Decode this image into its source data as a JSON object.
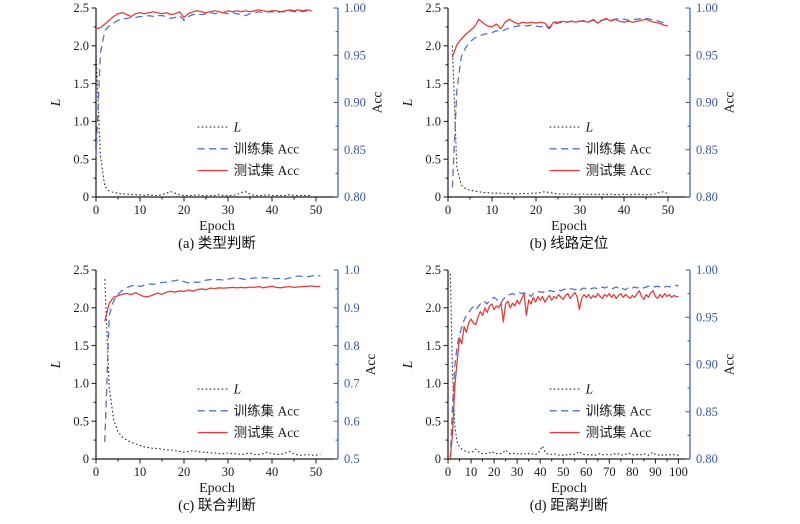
{
  "style": {
    "loss_color": "#2a2a2a",
    "train_color": "#5373c3",
    "test_color": "#e03e3c",
    "right_axis_color": "#3b56a8",
    "axis_color": "#1a1a1a"
  },
  "chart_data": [
    {
      "type": "line",
      "caption": "(a) 类型判断",
      "xlabel": "Epoch",
      "ylabel_left": "L",
      "ylabel_right": "Acc",
      "xlim": [
        0,
        55
      ],
      "xticks": [
        0,
        10,
        20,
        30,
        40,
        50
      ],
      "x_minor_step": 5,
      "ylim_left": [
        0,
        2.5
      ],
      "yticks_left": [
        "0",
        "0.5",
        "1.0",
        "1.5",
        "2.0",
        "2.5"
      ],
      "ylim_right": [
        0.8,
        1.0
      ],
      "yticks_right": [
        "0.80",
        "0.85",
        "0.90",
        "0.95",
        "1.00"
      ],
      "legend": [
        "L",
        "训练集 Acc",
        "测试集 Acc"
      ],
      "x_start": 0,
      "series": [
        {
          "name": "L",
          "axis": "left",
          "style": "dotted",
          "color": "loss_color",
          "values": [
            1.92,
            0.55,
            0.14,
            0.08,
            0.06,
            0.05,
            0.04,
            0.04,
            0.03,
            0.03,
            0.03,
            0.02,
            0.03,
            0.02,
            0.02,
            0.03,
            0.05,
            0.07,
            0.05,
            0.03,
            0.02,
            0.02,
            0.02,
            0.03,
            0.02,
            0.02,
            0.02,
            0.02,
            0.03,
            0.02,
            0.02,
            0.02,
            0.03,
            0.06,
            0.07,
            0.04,
            0.02,
            0.02,
            0.02,
            0.03,
            0.02,
            0.02,
            0.02,
            0.02,
            0.03,
            0.02,
            0.02,
            0.02,
            0.02,
            0.02
          ]
        },
        {
          "name": "训练集 Acc",
          "axis": "right",
          "style": "dashed",
          "color": "train_color",
          "values": [
            0.843,
            0.952,
            0.976,
            0.981,
            0.984,
            0.987,
            0.988,
            0.989,
            0.99,
            0.99,
            0.991,
            0.991,
            0.992,
            0.991,
            0.992,
            0.992,
            0.991,
            0.989,
            0.99,
            0.992,
            0.987,
            0.991,
            0.993,
            0.994,
            0.993,
            0.994,
            0.995,
            0.994,
            0.995,
            0.995,
            0.994,
            0.995,
            0.994,
            0.993,
            0.992,
            0.994,
            0.995,
            0.996,
            0.995,
            0.996,
            0.996,
            0.995,
            0.996,
            0.996,
            0.997,
            0.996,
            0.997,
            0.996,
            0.997,
            0.997
          ]
        },
        {
          "name": "测试集 Acc",
          "axis": "right",
          "style": "solid",
          "color": "test_color",
          "values": [
            0.978,
            0.979,
            0.983,
            0.987,
            0.991,
            0.994,
            0.995,
            0.993,
            0.991,
            0.994,
            0.995,
            0.994,
            0.995,
            0.996,
            0.995,
            0.994,
            0.995,
            0.993,
            0.994,
            0.996,
            0.99,
            0.994,
            0.996,
            0.997,
            0.996,
            0.995,
            0.996,
            0.997,
            0.996,
            0.995,
            0.997,
            0.996,
            0.997,
            0.996,
            0.997,
            0.996,
            0.997,
            0.998,
            0.997,
            0.996,
            0.997,
            0.997,
            0.996,
            0.997,
            0.998,
            0.997,
            0.998,
            0.997,
            0.998,
            0.997
          ]
        }
      ]
    },
    {
      "type": "line",
      "caption": "(b) 线路定位",
      "xlabel": "Epoch",
      "ylabel_left": "L",
      "ylabel_right": "Acc",
      "xlim": [
        0,
        55
      ],
      "xticks": [
        0,
        10,
        20,
        30,
        40,
        50
      ],
      "x_minor_step": 5,
      "ylim_left": [
        0,
        2.5
      ],
      "yticks_left": [
        "0",
        "0.5",
        "1.0",
        "1.5",
        "2.0",
        "2.5"
      ],
      "ylim_right": [
        0.8,
        1.0
      ],
      "yticks_right": [
        "0.80",
        "0.85",
        "0.90",
        "0.95",
        "1.00"
      ],
      "legend": [
        "L",
        "训练集 Acc",
        "测试集 Acc"
      ],
      "x_start": 1,
      "series": [
        {
          "name": "L",
          "axis": "left",
          "style": "dotted",
          "color": "loss_color",
          "values": [
            2.0,
            0.4,
            0.16,
            0.11,
            0.09,
            0.08,
            0.07,
            0.06,
            0.06,
            0.05,
            0.05,
            0.05,
            0.04,
            0.05,
            0.04,
            0.04,
            0.05,
            0.04,
            0.05,
            0.05,
            0.06,
            0.07,
            0.06,
            0.05,
            0.04,
            0.04,
            0.04,
            0.04,
            0.03,
            0.04,
            0.04,
            0.03,
            0.04,
            0.03,
            0.04,
            0.03,
            0.04,
            0.03,
            0.03,
            0.04,
            0.03,
            0.03,
            0.04,
            0.03,
            0.03,
            0.03,
            0.04,
            0.06,
            0.07,
            0.04
          ]
        },
        {
          "name": "训练集 Acc",
          "axis": "right",
          "style": "dashed",
          "color": "train_color",
          "values": [
            0.81,
            0.912,
            0.948,
            0.958,
            0.964,
            0.968,
            0.97,
            0.972,
            0.973,
            0.974,
            0.976,
            0.975,
            0.977,
            0.979,
            0.98,
            0.981,
            0.982,
            0.981,
            0.982,
            0.981,
            0.98,
            0.982,
            0.978,
            0.983,
            0.984,
            0.985,
            0.985,
            0.986,
            0.986,
            0.986,
            0.987,
            0.986,
            0.987,
            0.986,
            0.987,
            0.988,
            0.987,
            0.988,
            0.989,
            0.988,
            0.987,
            0.988,
            0.988,
            0.989,
            0.989,
            0.988,
            0.987,
            0.986,
            0.984,
            0.983
          ]
        },
        {
          "name": "测试集 Acc",
          "axis": "right",
          "style": "solid",
          "color": "test_color",
          "values": [
            0.948,
            0.961,
            0.967,
            0.972,
            0.976,
            0.98,
            0.988,
            0.984,
            0.981,
            0.98,
            0.983,
            0.978,
            0.985,
            0.988,
            0.985,
            0.983,
            0.985,
            0.984,
            0.985,
            0.984,
            0.985,
            0.984,
            0.979,
            0.985,
            0.985,
            0.986,
            0.985,
            0.986,
            0.985,
            0.986,
            0.986,
            0.985,
            0.988,
            0.984,
            0.987,
            0.989,
            0.986,
            0.988,
            0.986,
            0.985,
            0.986,
            0.985,
            0.986,
            0.987,
            0.988,
            0.986,
            0.985,
            0.984,
            0.982,
            0.981
          ]
        }
      ]
    },
    {
      "type": "line",
      "caption": "(c) 联合判断",
      "xlabel": "Epoch",
      "ylabel_left": "L",
      "ylabel_right": "Acc",
      "xlim": [
        0,
        55
      ],
      "xticks": [
        0,
        10,
        20,
        30,
        40,
        50
      ],
      "x_minor_step": 5,
      "ylim_left": [
        0,
        2.5
      ],
      "yticks_left": [
        "0",
        "0.5",
        "1.0",
        "1.5",
        "2.0",
        "2.5"
      ],
      "ylim_right": [
        0.5,
        1.0
      ],
      "yticks_right": [
        "0.5",
        "0.6",
        "0.7",
        "0.8",
        "0.9",
        "1.0"
      ],
      "legend": [
        "L",
        "训练集 Acc",
        "测试集 Acc"
      ],
      "x_start": 2,
      "series": [
        {
          "name": "L",
          "axis": "left",
          "style": "dotted",
          "color": "loss_color",
          "values": [
            2.38,
            0.95,
            0.52,
            0.36,
            0.29,
            0.25,
            0.22,
            0.2,
            0.18,
            0.16,
            0.15,
            0.14,
            0.14,
            0.13,
            0.12,
            0.12,
            0.11,
            0.1,
            0.09,
            0.1,
            0.11,
            0.1,
            0.09,
            0.09,
            0.08,
            0.08,
            0.07,
            0.07,
            0.08,
            0.07,
            0.07,
            0.06,
            0.07,
            0.08,
            0.06,
            0.06,
            0.07,
            0.09,
            0.07,
            0.06,
            0.06,
            0.08,
            0.1,
            0.07,
            0.05,
            0.05,
            0.06,
            0.05,
            0.05,
            0.06
          ]
        },
        {
          "name": "训练集 Acc",
          "axis": "right",
          "style": "dashed",
          "color": "train_color",
          "values": [
            0.545,
            0.88,
            0.918,
            0.936,
            0.946,
            0.953,
            0.958,
            0.961,
            0.956,
            0.96,
            0.963,
            0.962,
            0.965,
            0.967,
            0.968,
            0.97,
            0.972,
            0.974,
            0.969,
            0.966,
            0.968,
            0.967,
            0.969,
            0.973,
            0.975,
            0.974,
            0.975,
            0.973,
            0.976,
            0.978,
            0.979,
            0.977,
            0.975,
            0.977,
            0.979,
            0.978,
            0.98,
            0.979,
            0.978,
            0.977,
            0.978,
            0.976,
            0.979,
            0.982,
            0.984,
            0.983,
            0.982,
            0.984,
            0.986,
            0.985
          ]
        },
        {
          "name": "测试集 Acc",
          "axis": "right",
          "style": "solid",
          "color": "test_color",
          "values": [
            0.864,
            0.912,
            0.928,
            0.932,
            0.936,
            0.938,
            0.935,
            0.94,
            0.934,
            0.929,
            0.93,
            0.934,
            0.939,
            0.936,
            0.941,
            0.944,
            0.941,
            0.945,
            0.943,
            0.947,
            0.944,
            0.948,
            0.95,
            0.948,
            0.952,
            0.951,
            0.953,
            0.952,
            0.953,
            0.954,
            0.953,
            0.954,
            0.953,
            0.955,
            0.954,
            0.956,
            0.953,
            0.955,
            0.957,
            0.954,
            0.953,
            0.955,
            0.956,
            0.954,
            0.955,
            0.956,
            0.957,
            0.958,
            0.956,
            0.957
          ]
        }
      ]
    },
    {
      "type": "line",
      "caption": "(d) 距离判断",
      "xlabel": "Epoch",
      "ylabel_left": "L",
      "ylabel_right": "Acc",
      "xlim": [
        0,
        105
      ],
      "xticks": [
        0,
        10,
        20,
        30,
        40,
        50,
        60,
        70,
        80,
        90,
        100
      ],
      "x_minor_step": 5,
      "ylim_left": [
        0,
        2.5
      ],
      "yticks_left": [
        "0",
        "0.5",
        "1.0",
        "1.5",
        "2.0",
        "2.5"
      ],
      "ylim_right": [
        0.8,
        1.0
      ],
      "yticks_right": [
        "0.80",
        "0.85",
        "0.90",
        "0.95",
        "1.00"
      ],
      "legend": [
        "L",
        "训练集 Acc",
        "测试集 Acc"
      ],
      "x_start": 1,
      "series": [
        {
          "name": "L",
          "axis": "left",
          "style": "dotted",
          "color": "loss_color",
          "values": [
            2.45,
            1.1,
            0.42,
            0.22,
            0.16,
            0.13,
            0.11,
            0.1,
            0.09,
            0.09,
            0.1,
            0.13,
            0.1,
            0.08,
            0.07,
            0.08,
            0.07,
            0.08,
            0.1,
            0.08,
            0.07,
            0.08,
            0.07,
            0.09,
            0.12,
            0.09,
            0.07,
            0.07,
            0.08,
            0.07,
            0.06,
            0.07,
            0.06,
            0.08,
            0.07,
            0.06,
            0.07,
            0.06,
            0.07,
            0.12,
            0.17,
            0.1,
            0.07,
            0.06,
            0.06,
            0.07,
            0.06,
            0.05,
            0.06,
            0.05,
            0.06,
            0.05,
            0.06,
            0.07,
            0.06,
            0.08,
            0.1,
            0.07,
            0.06,
            0.05,
            0.06,
            0.05,
            0.06,
            0.05,
            0.06,
            0.07,
            0.06,
            0.05,
            0.06,
            0.05,
            0.06,
            0.07,
            0.06,
            0.07,
            0.06,
            0.05,
            0.06,
            0.08,
            0.07,
            0.06,
            0.05,
            0.06,
            0.05,
            0.06,
            0.07,
            0.06,
            0.05,
            0.07,
            0.09,
            0.06,
            0.05,
            0.06,
            0.05,
            0.06,
            0.05,
            0.06,
            0.05,
            0.06,
            0.05,
            0.05
          ]
        },
        {
          "name": "训练集 Acc",
          "axis": "right",
          "style": "dashed",
          "color": "train_color",
          "values": [
            0.8,
            0.858,
            0.9,
            0.92,
            0.931,
            0.94,
            0.947,
            0.952,
            0.955,
            0.959,
            0.961,
            0.958,
            0.961,
            0.964,
            0.967,
            0.966,
            0.964,
            0.968,
            0.97,
            0.971,
            0.969,
            0.967,
            0.965,
            0.969,
            0.972,
            0.974,
            0.974,
            0.975,
            0.974,
            0.975,
            0.976,
            0.975,
            0.976,
            0.973,
            0.974,
            0.972,
            0.975,
            0.976,
            0.977,
            0.977,
            0.976,
            0.978,
            0.977,
            0.978,
            0.978,
            0.977,
            0.978,
            0.979,
            0.978,
            0.979,
            0.98,
            0.979,
            0.98,
            0.98,
            0.979,
            0.98,
            0.978,
            0.98,
            0.981,
            0.98,
            0.981,
            0.98,
            0.981,
            0.981,
            0.98,
            0.981,
            0.982,
            0.981,
            0.982,
            0.981,
            0.98,
            0.981,
            0.982,
            0.981,
            0.982,
            0.98,
            0.979,
            0.981,
            0.982,
            0.981,
            0.982,
            0.981,
            0.982,
            0.982,
            0.981,
            0.982,
            0.983,
            0.982,
            0.983,
            0.982,
            0.983,
            0.982,
            0.983,
            0.982,
            0.983,
            0.982,
            0.983,
            0.983,
            0.984,
            0.983
          ]
        },
        {
          "name": "测试集 Acc",
          "axis": "right",
          "style": "solid",
          "color": "test_color",
          "values": [
            0.8,
            0.828,
            0.878,
            0.904,
            0.928,
            0.922,
            0.94,
            0.934,
            0.944,
            0.948,
            0.944,
            0.942,
            0.95,
            0.956,
            0.952,
            0.96,
            0.955,
            0.962,
            0.964,
            0.958,
            0.962,
            0.96,
            0.965,
            0.945,
            0.964,
            0.967,
            0.96,
            0.965,
            0.962,
            0.968,
            0.964,
            0.97,
            0.975,
            0.952,
            0.968,
            0.964,
            0.971,
            0.966,
            0.972,
            0.968,
            0.972,
            0.966,
            0.97,
            0.973,
            0.968,
            0.972,
            0.97,
            0.974,
            0.971,
            0.969,
            0.973,
            0.975,
            0.97,
            0.973,
            0.976,
            0.972,
            0.958,
            0.97,
            0.974,
            0.971,
            0.974,
            0.97,
            0.973,
            0.971,
            0.975,
            0.972,
            0.97,
            0.974,
            0.972,
            0.975,
            0.971,
            0.974,
            0.97,
            0.973,
            0.975,
            0.971,
            0.974,
            0.972,
            0.97,
            0.973,
            0.971,
            0.975,
            0.978,
            0.972,
            0.969,
            0.974,
            0.971,
            0.976,
            0.978,
            0.972,
            0.97,
            0.974,
            0.971,
            0.975,
            0.972,
            0.974,
            0.971,
            0.973,
            0.972,
            0.972
          ]
        }
      ]
    }
  ]
}
